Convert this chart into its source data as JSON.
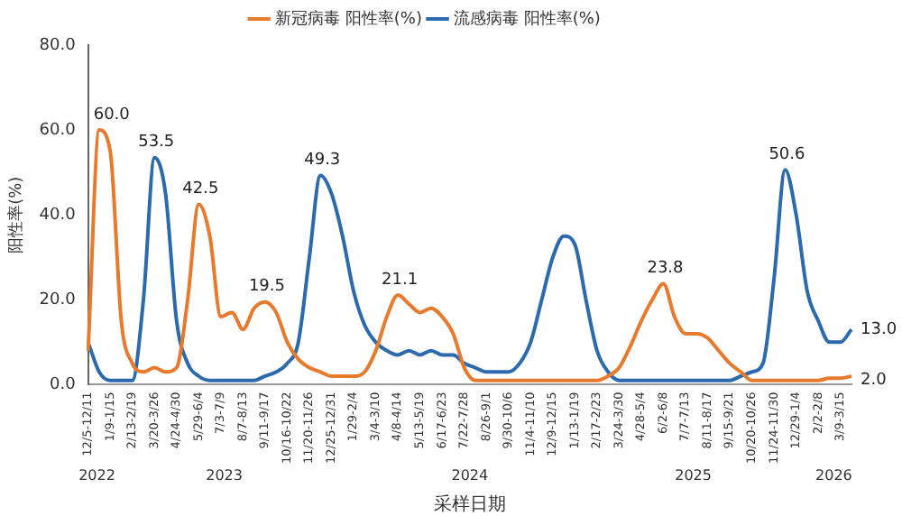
{
  "chart_data": {
    "type": "line",
    "xlabel": "采样日期",
    "ylabel": "阳性率(%)",
    "categories": [
      "12/5-12/11",
      null,
      "1/9-1/15",
      null,
      "2/13-2/19",
      null,
      "3/20-3/26",
      null,
      "4/24-4/30",
      null,
      "5/29-6/4",
      null,
      "7/3-7/9",
      null,
      "8/7-8/13",
      null,
      "9/11-9/17",
      null,
      "10/16-10/22",
      null,
      "11/20-11/26",
      null,
      "12/25-12/31",
      null,
      "1/29-2/4",
      null,
      "3/4-3/10",
      null,
      "4/8-4/14",
      null,
      "5/13-5/19",
      null,
      "6/17-6/23",
      null,
      "7/22-7/28",
      null,
      "8/26-9/1",
      null,
      "9/30-10/6",
      null,
      "11/4-11/10",
      null,
      "12/9-12/15",
      null,
      "1/13-1/19",
      null,
      "2/17-2/23",
      null,
      "3/24-3/30",
      null,
      "4/28-5/4",
      null,
      "6/2-6/8",
      null,
      "7/7-7/13",
      null,
      "8/11-8/17",
      null,
      "9/15-9/21",
      null,
      "10/20-10/26",
      null,
      "11/24-11/30",
      null,
      "12/29-1/4",
      null,
      "2/2-2/8",
      null,
      "3/9-3/15",
      null
    ],
    "series": [
      {
        "name": "新冠病毒 阳性率(%)",
        "color": "#e87a2e",
        "values": [
          8,
          60.0,
          55,
          15,
          5,
          3,
          4,
          3,
          4,
          20,
          42.5,
          35,
          16,
          17,
          13,
          18,
          19.5,
          17,
          10,
          6,
          4,
          3,
          2,
          2,
          2,
          3,
          8,
          16,
          21.1,
          19,
          17,
          18,
          16,
          12,
          4,
          1,
          1,
          1,
          1,
          1,
          1,
          1,
          1,
          1,
          1,
          1,
          1,
          2,
          4,
          9,
          15,
          20,
          23.8,
          16,
          12,
          12,
          11,
          8,
          5,
          3,
          1,
          1,
          1,
          1,
          1,
          1,
          1,
          1.5,
          1.5,
          2.0
        ],
        "value_labels": [
          null,
          "60.0",
          null,
          null,
          null,
          null,
          null,
          null,
          null,
          null,
          "42.5",
          null,
          null,
          null,
          null,
          null,
          "19.5",
          null,
          null,
          null,
          null,
          null,
          null,
          null,
          null,
          null,
          null,
          null,
          "21.1",
          null,
          null,
          null,
          null,
          null,
          null,
          null,
          null,
          null,
          null,
          null,
          null,
          null,
          null,
          null,
          null,
          null,
          null,
          null,
          null,
          null,
          null,
          null,
          "23.8",
          null,
          null,
          null,
          null,
          null,
          null,
          null,
          null,
          null,
          null,
          null,
          null,
          null,
          null,
          null,
          null,
          "2.0"
        ]
      },
      {
        "name": "流感病毒 阳性率(%)",
        "color": "#2a6aad",
        "values": [
          10,
          3,
          1,
          1,
          1,
          20,
          53.5,
          45,
          15,
          5,
          2,
          1,
          1,
          1,
          1,
          1,
          2,
          3,
          5,
          10,
          30,
          49.3,
          45,
          35,
          22,
          14,
          10,
          8,
          7,
          8,
          7,
          8,
          7,
          7,
          5,
          4,
          3,
          3,
          3,
          5,
          10,
          20,
          30,
          35,
          33,
          20,
          8,
          3,
          1,
          1,
          1,
          1,
          1,
          1,
          1,
          1,
          1,
          1,
          1,
          2,
          3,
          5,
          25,
          50.6,
          40,
          22,
          15,
          10,
          10,
          13.0
        ],
        "value_labels": [
          null,
          null,
          null,
          null,
          null,
          null,
          "53.5",
          null,
          null,
          null,
          null,
          null,
          null,
          null,
          null,
          null,
          null,
          null,
          null,
          null,
          null,
          "49.3",
          null,
          null,
          null,
          null,
          null,
          null,
          null,
          null,
          null,
          null,
          null,
          null,
          null,
          null,
          null,
          null,
          null,
          null,
          null,
          null,
          null,
          null,
          null,
          null,
          null,
          null,
          null,
          null,
          null,
          null,
          null,
          null,
          null,
          null,
          null,
          null,
          null,
          null,
          null,
          null,
          null,
          "50.6",
          null,
          null,
          null,
          null,
          null,
          "13.0"
        ]
      }
    ],
    "ylim": [
      0,
      80
    ],
    "yticks": [
      {
        "value": 0,
        "label": "0.0"
      },
      {
        "value": 20,
        "label": "20.0"
      },
      {
        "value": 40,
        "label": "40.0"
      },
      {
        "value": 60,
        "label": "60.0"
      },
      {
        "value": 80,
        "label": "80.0"
      }
    ],
    "annotations": [
      "2022",
      "2023",
      "2024",
      "2025",
      "2026"
    ],
    "grid": false,
    "legend": "top",
    "marker": "none",
    "line_style": "solid"
  }
}
